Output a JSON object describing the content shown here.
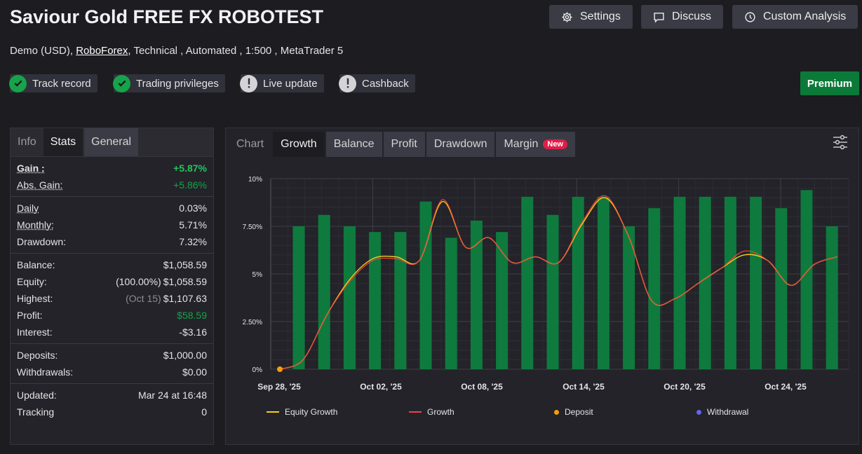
{
  "header": {
    "title": "Saviour Gold FREE FX ROBOTEST",
    "account_type": "Demo (USD),",
    "broker": "RoboForex",
    "details": ", Technical , Automated , 1:500 , MetaTrader 5"
  },
  "top_buttons": {
    "settings": "Settings",
    "discuss": "Discuss",
    "custom_analysis": "Custom Analysis"
  },
  "badges": {
    "track_record": "Track record",
    "trading_privileges": "Trading privileges",
    "live_update": "Live update",
    "cashback": "Cashback"
  },
  "premium_label": "Premium",
  "left_tabs": {
    "info": "Info",
    "stats": "Stats",
    "general": "General"
  },
  "stats": {
    "gain_label": "Gain :",
    "gain_value": "+5.87%",
    "abs_gain_label": "Abs. Gain:",
    "abs_gain_value": "+5.86%",
    "daily_label": "Daily",
    "daily_value": "0.03%",
    "monthly_label": "Monthly:",
    "monthly_value": "5.71%",
    "drawdown_label": "Drawdown:",
    "drawdown_value": "7.32%",
    "balance_label": "Balance:",
    "balance_value": "$1,058.59",
    "equity_label": "Equity:",
    "equity_pct": "(100.00%)",
    "equity_value": "$1,058.59",
    "highest_label": "Highest:",
    "highest_date": "(Oct 15)",
    "highest_value": "$1,107.63",
    "profit_label": "Profit:",
    "profit_value": "$58.59",
    "interest_label": "Interest:",
    "interest_value": "-$3.16",
    "deposits_label": "Deposits:",
    "deposits_value": "$1,000.00",
    "withdrawals_label": "Withdrawals:",
    "withdrawals_value": "$0.00",
    "updated_label": "Updated:",
    "updated_value": "Mar 24 at 16:48",
    "tracking_label": "Tracking",
    "tracking_value": "0"
  },
  "chart_tabs": {
    "chart": "Chart",
    "growth": "Growth",
    "balance": "Balance",
    "profit": "Profit",
    "drawdown": "Drawdown",
    "margin": "Margin",
    "new_badge": "New"
  },
  "chart_data": {
    "type": "bar",
    "y_ticks": [
      "0%",
      "2.50%",
      "5%",
      "7.50%",
      "10%"
    ],
    "ylim": [
      0,
      10
    ],
    "x_ticks": [
      "Sep 28, '25",
      "Oct 02, '25",
      "Oct 08, '25",
      "Oct 14, '25",
      "Oct 20, '25",
      "Oct 24, '25"
    ],
    "bars": [
      7.5,
      8.1,
      7.5,
      7.2,
      7.2,
      8.8,
      6.9,
      7.8,
      7.2,
      9.05,
      8.1,
      9.05,
      9.05,
      7.5,
      8.45,
      9.05,
      9.05,
      9.05,
      9.05,
      8.45,
      9.4,
      7.5
    ],
    "growth_line": [
      0.0,
      0.5,
      2.8,
      4.6,
      5.7,
      5.8,
      5.7,
      8.9,
      6.4,
      6.9,
      5.6,
      5.9,
      5.6,
      7.7,
      9.1,
      7.0,
      3.6,
      3.7,
      4.5,
      5.3,
      6.2,
      5.7,
      4.4,
      5.5,
      5.9
    ],
    "equity_line": [
      0.0,
      0.5,
      2.8,
      4.7,
      5.8,
      5.9,
      5.7,
      8.8,
      6.4,
      6.9,
      5.6,
      5.9,
      5.6,
      7.6,
      9.0,
      7.0,
      3.6,
      3.7,
      4.5,
      5.3,
      6.0,
      5.7,
      4.4,
      5.5,
      5.9
    ],
    "deposit_points": [
      {
        "x_index": 0,
        "value": 0
      }
    ],
    "series": [
      {
        "name": "Equity Growth",
        "color": "#facc15"
      },
      {
        "name": "Growth",
        "color": "#ef4444"
      },
      {
        "name": "Deposit",
        "color": "#f59e0b"
      },
      {
        "name": "Withdrawal",
        "color": "#6366f1"
      }
    ],
    "bar_color": "#0f7a3e",
    "grid": true,
    "legend_position": "bottom"
  }
}
